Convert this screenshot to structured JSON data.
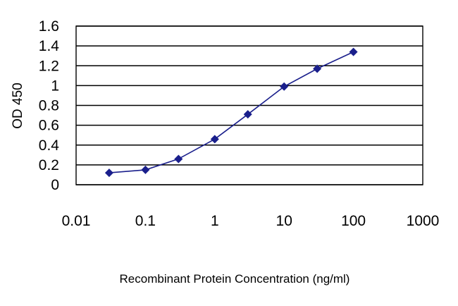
{
  "chart_data": {
    "type": "line",
    "x_scale": "log",
    "xlabel": "Recombinant Protein Concentration (ng/ml)",
    "ylabel": "OD 450",
    "xlim": [
      0.01,
      1000
    ],
    "ylim": [
      0,
      1.6
    ],
    "x_ticks": [
      0.01,
      0.1,
      1,
      10,
      100,
      1000
    ],
    "x_tick_labels": [
      "0.01",
      "0.1",
      "1",
      "10",
      "100",
      "1000"
    ],
    "y_ticks": [
      0,
      0.2,
      0.4,
      0.6,
      0.8,
      1,
      1.2,
      1.4,
      1.6
    ],
    "y_tick_labels": [
      "0",
      "0.2",
      "0.4",
      "0.6",
      "0.8",
      "1",
      "1.2",
      "1.4",
      "1.6"
    ],
    "grid": "horizontal",
    "series": [
      {
        "x": [
          0.03,
          0.1,
          0.3,
          1,
          3,
          10,
          30,
          100
        ],
        "y": [
          0.12,
          0.15,
          0.26,
          0.46,
          0.71,
          0.99,
          1.17,
          1.34
        ],
        "marker": "diamond"
      }
    ],
    "colors": {
      "series": "#1a1f8c",
      "grid": "#000000",
      "frame": "#000000"
    }
  }
}
